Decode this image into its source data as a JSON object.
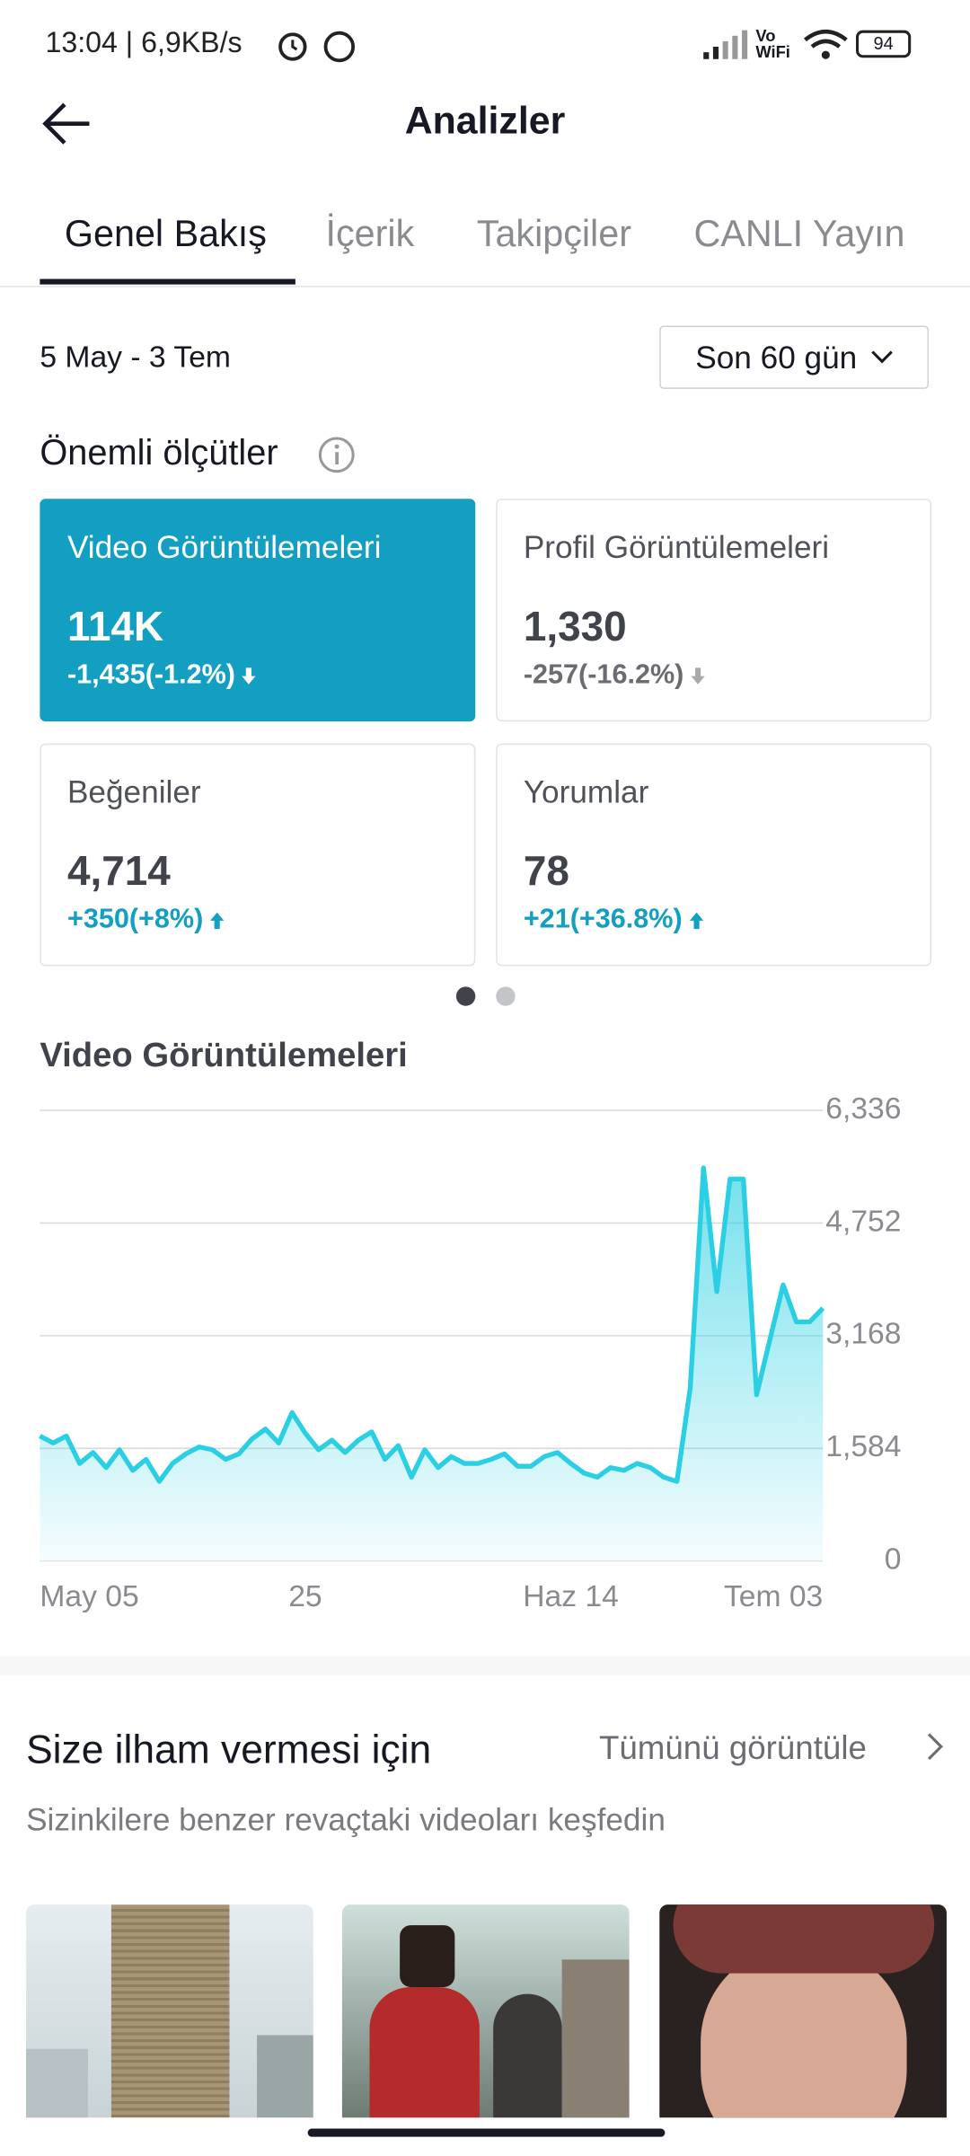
{
  "status_bar": {
    "time": "13:04",
    "speed": "6,9KB/s",
    "network": "Vo WiFi",
    "battery": "94"
  },
  "header": {
    "title": "Analizler"
  },
  "tabs": [
    "Genel Bakış",
    "İçerik",
    "Takipçiler",
    "CANLI Yayın"
  ],
  "date_range": "5 May - 3 Tem",
  "period_selector": "Son 60 gün",
  "metrics_title": "Önemli ölçütler",
  "metrics": [
    {
      "label": "Video Görüntülemeleri",
      "value": "114K",
      "change": "-1,435(-1.2%)"
    },
    {
      "label": "Profil Görüntülemeleri",
      "value": "1,330",
      "change": "-257(-16.2%)"
    },
    {
      "label": "Beğeniler",
      "value": "4,714",
      "change": "+350(+8%)"
    },
    {
      "label": "Yorumlar",
      "value": "78",
      "change": "+21(+36.8%)"
    }
  ],
  "chart_data": {
    "type": "line",
    "title": "Video Görüntülemeleri",
    "color": "#2bcfe3",
    "grid": true,
    "categories": [
      "May 05",
      null,
      null,
      null,
      null,
      null,
      null,
      null,
      null,
      null,
      null,
      null,
      null,
      null,
      null,
      null,
      null,
      null,
      null,
      null,
      "25",
      null,
      null,
      null,
      null,
      null,
      null,
      null,
      null,
      null,
      null,
      null,
      null,
      null,
      null,
      null,
      null,
      null,
      null,
      null,
      "Haz 14",
      null,
      null,
      null,
      null,
      null,
      null,
      null,
      null,
      null,
      null,
      null,
      null,
      null,
      null,
      null,
      null,
      null,
      null,
      "Tem 03"
    ],
    "values": [
      1758,
      1660,
      1758,
      1372,
      1526,
      1314,
      1565,
      1275,
      1430,
      1120,
      1372,
      1507,
      1604,
      1565,
      1430,
      1507,
      1720,
      1855,
      1660,
      2087,
      1797,
      1565,
      1700,
      1526,
      1700,
      1816,
      1430,
      1623,
      1179,
      1565,
      1314,
      1468,
      1372,
      1372,
      1430,
      1507,
      1333,
      1333,
      1468,
      1526,
      1372,
      1237,
      1179,
      1314,
      1275,
      1372,
      1314,
      1179,
      1120,
      2434,
      5526,
      3787,
      5371,
      5371,
      2338,
      3111,
      3883,
      3362,
      3362,
      3555
    ],
    "ylim": [
      0,
      6336
    ],
    "yticks": [
      0,
      {
        "value": 1584,
        "label": "1,584"
      },
      {
        "value": 3168,
        "label": "3,168"
      },
      {
        "value": 4752,
        "label": "4,752"
      },
      {
        "value": 6336,
        "label": "6,336"
      }
    ]
  },
  "inspiration": {
    "title": "Size ilham vermesi için",
    "link": "Tümünü görüntüle",
    "subtitle": "Sizinkilere benzer revaçtaki videoları keşfedin"
  }
}
